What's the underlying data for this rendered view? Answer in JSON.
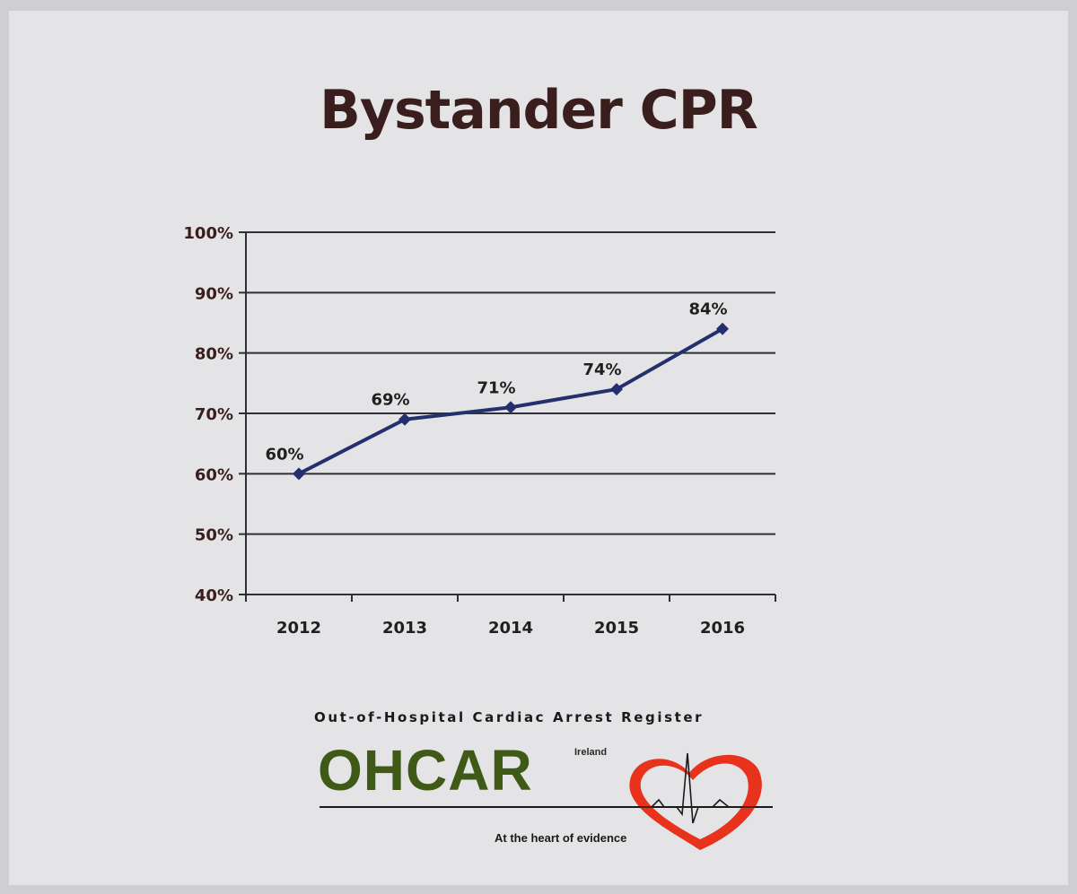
{
  "slide": {
    "title": "Bystander CPR"
  },
  "chart_data": {
    "type": "line",
    "categories": [
      "2012",
      "2013",
      "2014",
      "2015",
      "2016"
    ],
    "series": [
      {
        "values": [
          60,
          69,
          71,
          74,
          84
        ],
        "labels": [
          "60%",
          "69%",
          "71%",
          "74%",
          "84%"
        ]
      }
    ],
    "y_ticks": [
      "40%",
      "50%",
      "60%",
      "70%",
      "80%",
      "90%",
      "100%"
    ],
    "ylim": [
      40,
      100
    ],
    "y_unit": "%",
    "grid": true,
    "marker": "diamond",
    "line_color": "#24306e",
    "title": "Bystander CPR",
    "xlabel": "",
    "ylabel": ""
  },
  "logo": {
    "full_name": "Out-of-Hospital Cardiac Arrest Register",
    "name": "OHCAR",
    "country": "Ireland",
    "tagline": "At the heart of evidence",
    "name_color": "#3f5a17",
    "heart_color": "#e8321c"
  }
}
